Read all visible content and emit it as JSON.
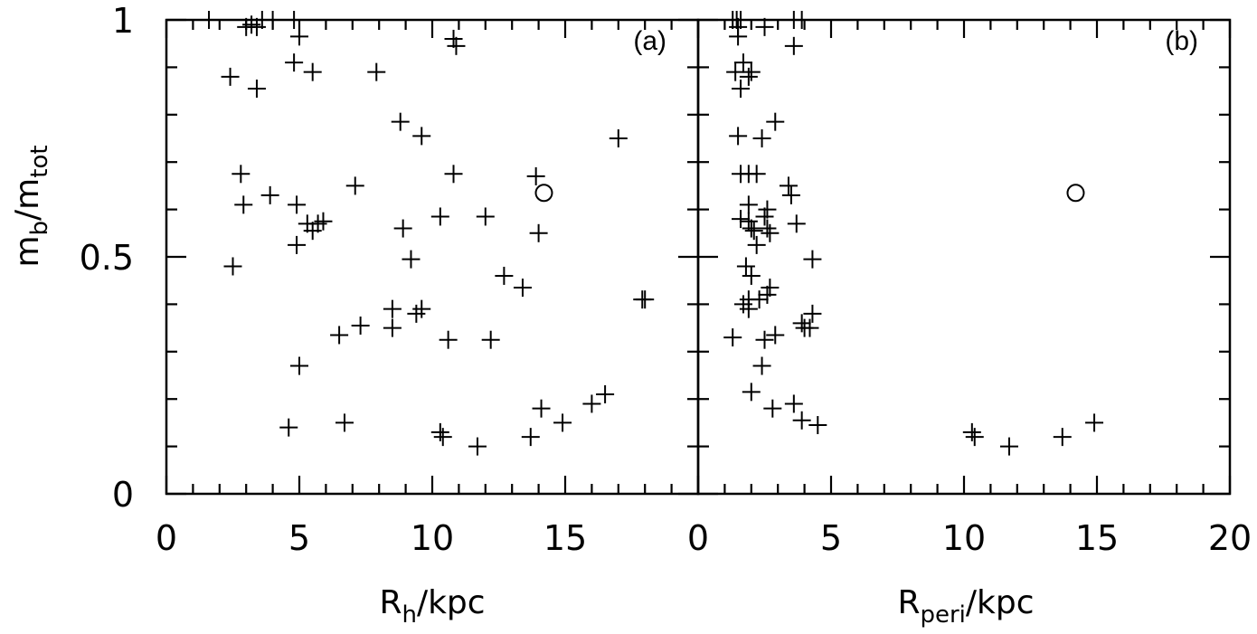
{
  "chart_data": [
    {
      "type": "scatter",
      "panel_label": "(a)",
      "xlabel": {
        "main": "R",
        "sub": "h",
        "suffix": "/kpc"
      },
      "ylabel": {
        "main": "m",
        "sub1": "b",
        "mid": "/m",
        "sub2": "tot"
      },
      "xlim": [
        0,
        20
      ],
      "ylim": [
        0,
        1.0
      ],
      "x_tick_labels": [
        "0",
        "5",
        "10",
        "15"
      ],
      "y_tick_labels": [
        "0",
        "0.5",
        "1"
      ],
      "series": [
        {
          "marker": "plus",
          "points": [
            [
              1.6,
              1.0
            ],
            [
              3.0,
              0.985
            ],
            [
              3.2,
              0.99
            ],
            [
              3.4,
              0.985
            ],
            [
              3.6,
              1.0
            ],
            [
              4.0,
              1.0
            ],
            [
              4.8,
              1.0
            ],
            [
              5.0,
              0.965
            ],
            [
              2.4,
              0.88
            ],
            [
              3.4,
              0.855
            ],
            [
              4.8,
              0.91
            ],
            [
              5.5,
              0.89
            ],
            [
              7.9,
              0.89
            ],
            [
              10.8,
              0.96
            ],
            [
              10.9,
              0.945
            ],
            [
              8.8,
              0.785
            ],
            [
              9.6,
              0.755
            ],
            [
              17.0,
              0.75
            ],
            [
              2.8,
              0.675
            ],
            [
              2.9,
              0.61
            ],
            [
              3.9,
              0.63
            ],
            [
              7.1,
              0.65
            ],
            [
              4.9,
              0.61
            ],
            [
              5.3,
              0.57
            ],
            [
              5.5,
              0.555
            ],
            [
              5.7,
              0.57
            ],
            [
              5.9,
              0.575
            ],
            [
              10.8,
              0.675
            ],
            [
              10.3,
              0.585
            ],
            [
              12.0,
              0.585
            ],
            [
              8.9,
              0.56
            ],
            [
              13.9,
              0.67
            ],
            [
              14.0,
              0.55
            ],
            [
              2.5,
              0.48
            ],
            [
              4.9,
              0.525
            ],
            [
              9.2,
              0.495
            ],
            [
              12.7,
              0.46
            ],
            [
              13.4,
              0.435
            ],
            [
              17.9,
              0.41
            ],
            [
              18.0,
              0.41
            ],
            [
              8.5,
              0.39
            ],
            [
              9.4,
              0.38
            ],
            [
              9.6,
              0.39
            ],
            [
              8.5,
              0.35
            ],
            [
              7.3,
              0.355
            ],
            [
              6.5,
              0.335
            ],
            [
              10.6,
              0.325
            ],
            [
              12.2,
              0.325
            ],
            [
              5.0,
              0.27
            ],
            [
              4.6,
              0.14
            ],
            [
              6.7,
              0.15
            ],
            [
              10.3,
              0.13
            ],
            [
              10.4,
              0.12
            ],
            [
              11.7,
              0.1
            ],
            [
              13.7,
              0.12
            ],
            [
              14.1,
              0.18
            ],
            [
              14.9,
              0.15
            ],
            [
              16.0,
              0.19
            ],
            [
              16.5,
              0.21
            ]
          ]
        },
        {
          "marker": "circle",
          "points": [
            [
              14.2,
              0.635
            ]
          ]
        }
      ]
    },
    {
      "type": "scatter",
      "panel_label": "(b)",
      "xlabel": {
        "main": "R",
        "sub": "peri",
        "suffix": "/kpc"
      },
      "xlim": [
        0,
        20
      ],
      "ylim": [
        0,
        1.0
      ],
      "x_tick_labels": [
        "0",
        "5",
        "10",
        "15",
        "20"
      ],
      "series": [
        {
          "marker": "plus",
          "points": [
            [
              1.3,
              1.0
            ],
            [
              1.45,
              1.0
            ],
            [
              1.5,
              0.985
            ],
            [
              1.6,
              1.0
            ],
            [
              1.5,
              0.965
            ],
            [
              2.5,
              0.985
            ],
            [
              3.6,
              1.0
            ],
            [
              3.9,
              1.0
            ],
            [
              3.6,
              0.945
            ],
            [
              1.4,
              0.89
            ],
            [
              1.7,
              0.91
            ],
            [
              1.9,
              0.88
            ],
            [
              2.0,
              0.89
            ],
            [
              1.6,
              0.855
            ],
            [
              2.9,
              0.785
            ],
            [
              1.5,
              0.755
            ],
            [
              2.4,
              0.75
            ],
            [
              1.6,
              0.675
            ],
            [
              1.9,
              0.675
            ],
            [
              2.2,
              0.675
            ],
            [
              3.4,
              0.65
            ],
            [
              3.5,
              0.63
            ],
            [
              1.9,
              0.61
            ],
            [
              1.6,
              0.58
            ],
            [
              1.9,
              0.575
            ],
            [
              2.0,
              0.56
            ],
            [
              2.1,
              0.555
            ],
            [
              2.2,
              0.525
            ],
            [
              2.6,
              0.6
            ],
            [
              2.5,
              0.585
            ],
            [
              2.6,
              0.56
            ],
            [
              2.7,
              0.55
            ],
            [
              3.7,
              0.57
            ],
            [
              1.8,
              0.48
            ],
            [
              2.0,
              0.46
            ],
            [
              4.3,
              0.495
            ],
            [
              1.7,
              0.4
            ],
            [
              1.9,
              0.41
            ],
            [
              1.9,
              0.39
            ],
            [
              2.3,
              0.41
            ],
            [
              2.6,
              0.42
            ],
            [
              2.7,
              0.435
            ],
            [
              3.9,
              0.36
            ],
            [
              4.0,
              0.35
            ],
            [
              4.2,
              0.35
            ],
            [
              4.3,
              0.38
            ],
            [
              1.3,
              0.33
            ],
            [
              2.5,
              0.325
            ],
            [
              2.9,
              0.335
            ],
            [
              2.4,
              0.27
            ],
            [
              2.0,
              0.215
            ],
            [
              2.8,
              0.18
            ],
            [
              3.6,
              0.19
            ],
            [
              3.9,
              0.155
            ],
            [
              4.5,
              0.145
            ],
            [
              10.3,
              0.13
            ],
            [
              10.4,
              0.12
            ],
            [
              11.7,
              0.1
            ],
            [
              13.7,
              0.12
            ],
            [
              14.9,
              0.15
            ]
          ]
        },
        {
          "marker": "circle",
          "points": [
            [
              14.2,
              0.635
            ]
          ]
        }
      ]
    }
  ]
}
